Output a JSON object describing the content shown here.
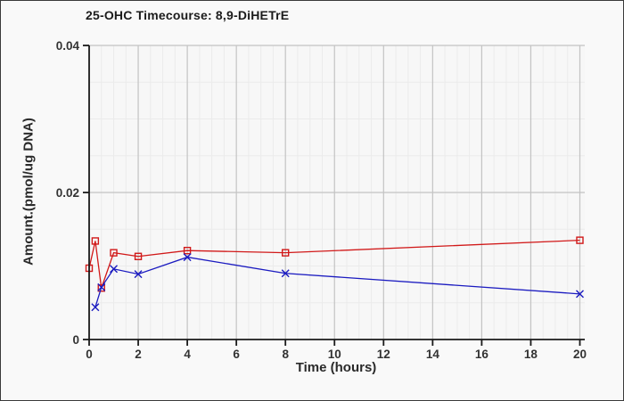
{
  "chart_data": {
    "type": "line",
    "title": "25-OHC Timecourse: 8,9-DiHETrE",
    "xlabel": "Time (hours)",
    "ylabel": "Amount.(pmol/ug DNA)",
    "xlim": [
      0,
      20.2
    ],
    "ylim": [
      0,
      0.04
    ],
    "x_ticks": [
      0,
      2,
      4,
      6,
      8,
      10,
      12,
      14,
      16,
      18,
      20
    ],
    "x_tick_labels": [
      "0",
      "2",
      "4",
      "6",
      "8",
      "10",
      "12",
      "14",
      "16",
      "18",
      "20"
    ],
    "y_ticks": [
      0,
      0.02,
      0.04
    ],
    "y_tick_labels": [
      "0",
      "0.02",
      "0.04"
    ],
    "minor_x_step": 0.5,
    "minor_y_step": 0.005,
    "grid": true,
    "legend": "none",
    "colors": {
      "figure_background": "#f9f9f9",
      "plot_background": "#f7f7f7",
      "major_grid": "#c3c3c3",
      "minor_grid": "#ebebeb",
      "axis": "#1a1a1a",
      "tick_label": "#333333",
      "series_red": "#d11919",
      "series_blue": "#1b1bc0"
    },
    "series": [
      {
        "name": "red-square-series",
        "marker": "open-square",
        "color": "#d11919",
        "points": [
          [
            0,
            0.0097
          ],
          [
            0.25,
            0.0134
          ],
          [
            0.5,
            0.007
          ],
          [
            1,
            0.0118
          ],
          [
            2,
            0.0113
          ],
          [
            4,
            0.0121
          ],
          [
            8,
            0.0118
          ],
          [
            20,
            0.0135
          ]
        ]
      },
      {
        "name": "blue-x-series",
        "marker": "x",
        "color": "#1b1bc0",
        "points": [
          [
            0.25,
            0.0044
          ],
          [
            0.5,
            0.0071
          ],
          [
            1,
            0.0096
          ],
          [
            2,
            0.0089
          ],
          [
            4,
            0.0112
          ],
          [
            8,
            0.009
          ],
          [
            20,
            0.0062
          ]
        ]
      }
    ]
  }
}
